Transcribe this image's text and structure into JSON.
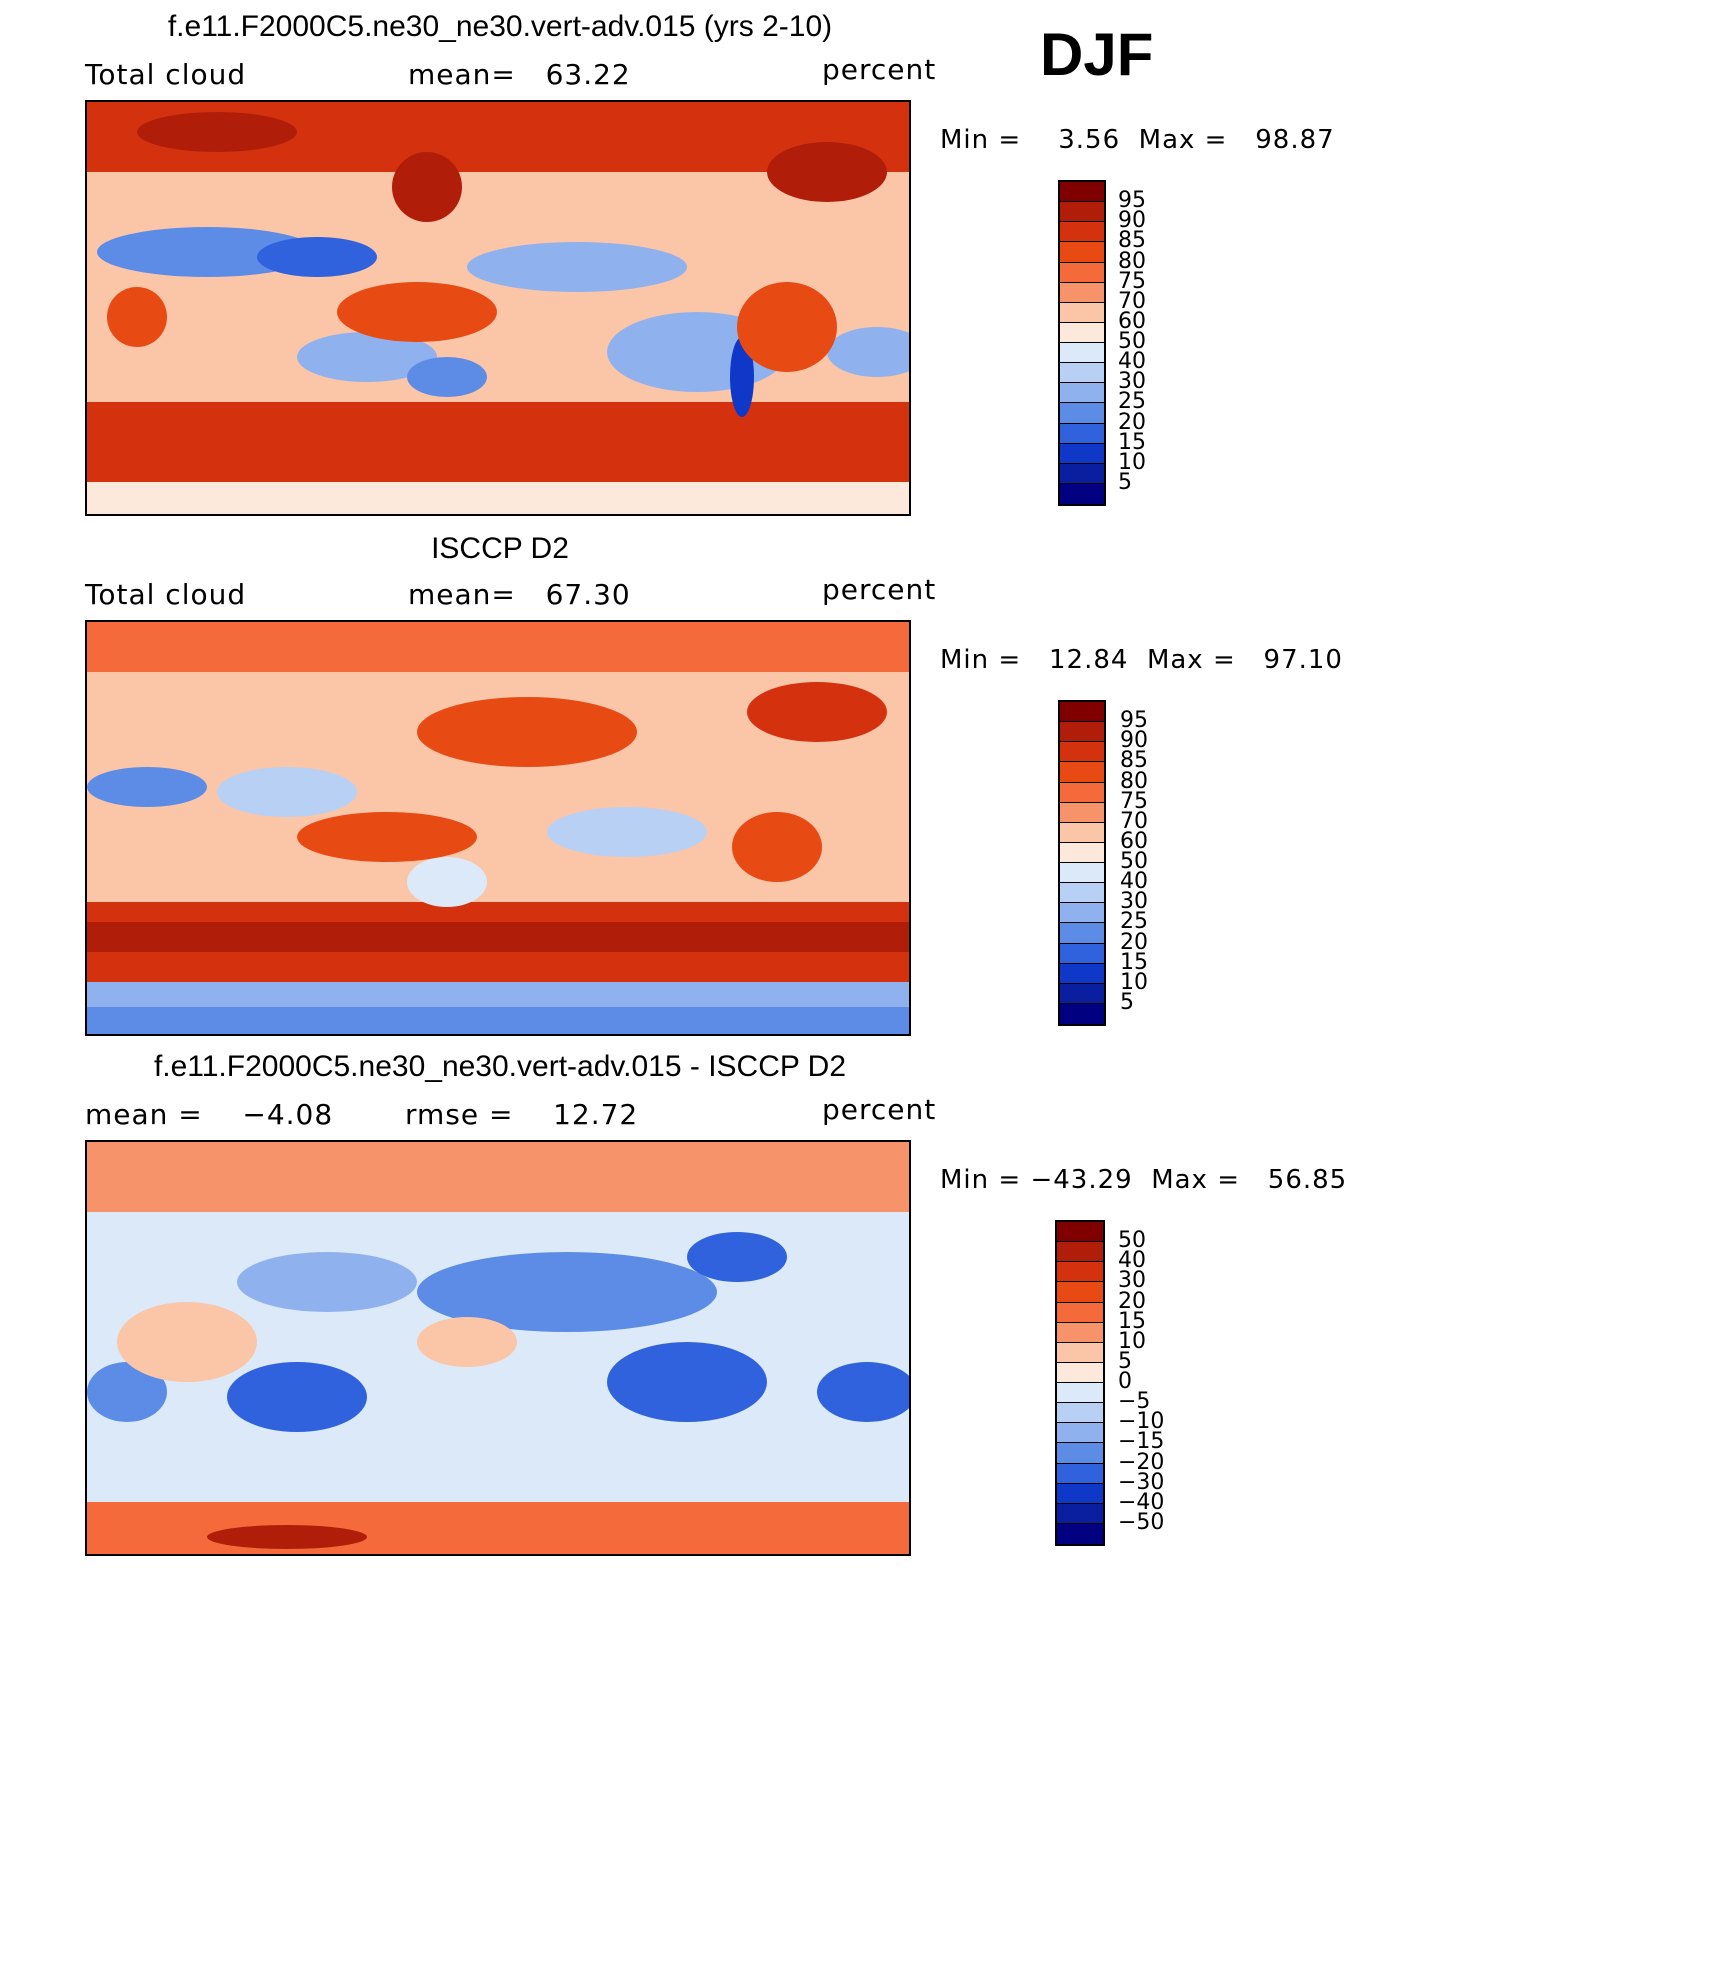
{
  "season": "DJF",
  "panels": [
    {
      "id": "model",
      "title": "f.e11.F2000C5.ne30_ne30.vert-adv.015 (yrs 2-10)",
      "left_label": "Total cloud",
      "center_label": "mean=   63.22",
      "right_label": "percent",
      "minmax": "Min =    3.56  Max =   98.87",
      "colorbar_labels": [
        "95",
        "90",
        "85",
        "80",
        "75",
        "70",
        "60",
        "50",
        "40",
        "30",
        "25",
        "20",
        "15",
        "10",
        "5"
      ]
    },
    {
      "id": "obs",
      "title": "ISCCP D2",
      "left_label": "Total cloud",
      "center_label": "mean=   67.30",
      "right_label": "percent",
      "minmax": "Min =   12.84  Max =   97.10",
      "colorbar_labels": [
        "95",
        "90",
        "85",
        "80",
        "75",
        "70",
        "60",
        "50",
        "40",
        "30",
        "25",
        "20",
        "15",
        "10",
        "5"
      ]
    },
    {
      "id": "diff",
      "title": "f.e11.F2000C5.ne30_ne30.vert-adv.015 - ISCCP D2",
      "left_label": "mean =    −4.08",
      "center_label": "rmse =    12.72",
      "right_label": "percent",
      "minmax": "Min = −43.29  Max =   56.85",
      "colorbar_labels": [
        "50",
        "40",
        "30",
        "20",
        "15",
        "10",
        "5",
        "0",
        "−5",
        "−10",
        "−15",
        "−20",
        "−30",
        "−40",
        "−50"
      ]
    }
  ],
  "colors": {
    "palette": [
      "#800000",
      "#b01e0a",
      "#d4320e",
      "#e84a14",
      "#f46a3a",
      "#f7936a",
      "#fbc5a8",
      "#fde9dc",
      "#dce9f8",
      "#b8d0f4",
      "#8fb2ee",
      "#5d8ce6",
      "#2f62dc",
      "#1038c8",
      "#0a1ea0",
      "#000080"
    ]
  }
}
